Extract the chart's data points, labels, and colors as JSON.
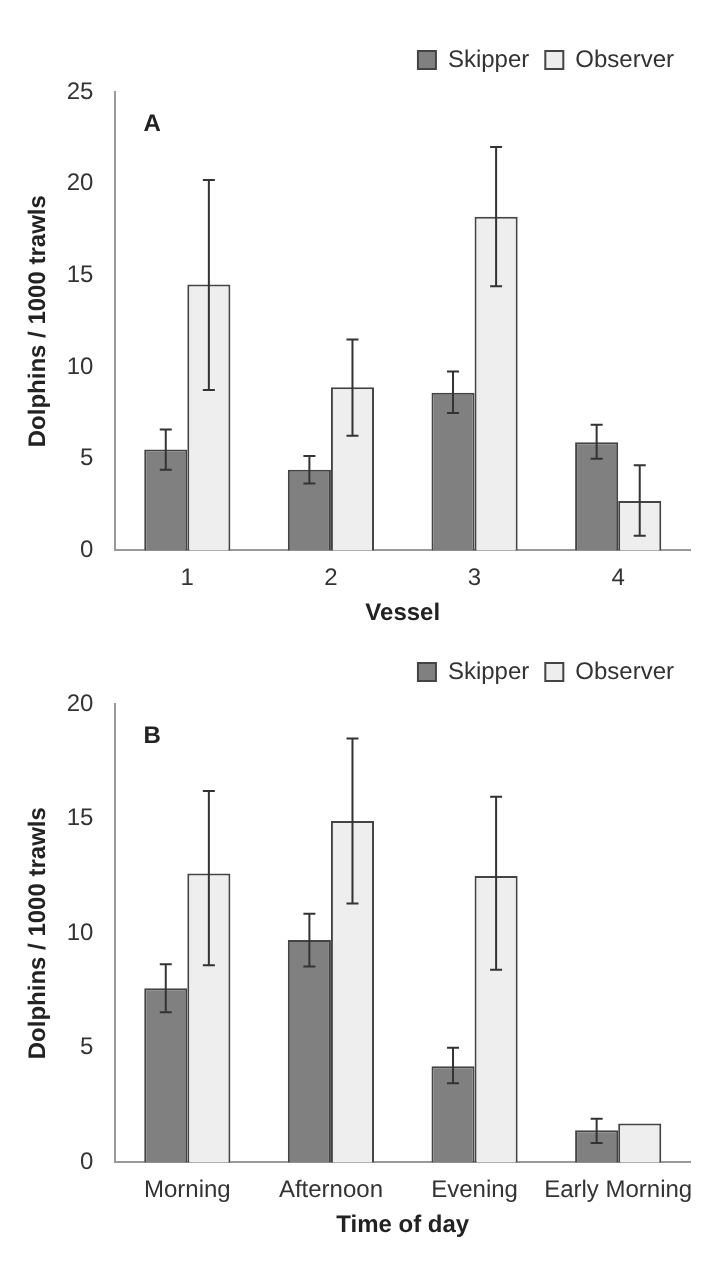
{
  "chart_data": [
    {
      "type": "bar",
      "annotations": [
        "A"
      ],
      "xlabel": "Vessel",
      "ylabel": "Dolphins / 1000 trawls",
      "categories": [
        "1",
        "2",
        "3",
        "4"
      ],
      "series": [
        {
          "name": "Skipper",
          "color": "#808080",
          "values": [
            5.5,
            4.4,
            8.6,
            5.9
          ],
          "errors": [
            [
              4.4,
              6.6
            ],
            [
              3.65,
              5.15
            ],
            [
              7.5,
              9.75
            ],
            [
              5.0,
              6.85
            ]
          ]
        },
        {
          "name": "Observer",
          "color": "#eeeeee",
          "values": [
            14.5,
            8.9,
            18.2,
            2.7
          ],
          "errors": [
            [
              8.75,
              20.2
            ],
            [
              6.25,
              11.5
            ],
            [
              14.4,
              22.0
            ],
            [
              0.8,
              4.65
            ]
          ]
        }
      ],
      "ylim": [
        0,
        25
      ],
      "yticks": [
        0,
        5,
        10,
        15,
        20,
        25
      ],
      "grid": false,
      "legend": "top right"
    },
    {
      "type": "bar",
      "annotations": [
        "B"
      ],
      "xlabel": "Time of day",
      "ylabel": "Dolphins / 1000 trawls",
      "categories": [
        "Morning",
        "Afternoon",
        "Evening",
        "Early Morning"
      ],
      "series": [
        {
          "name": "Skipper",
          "color": "#808080",
          "values": [
            7.6,
            9.7,
            4.2,
            1.4
          ],
          "errors": [
            [
              6.55,
              8.65
            ],
            [
              8.55,
              10.85
            ],
            [
              3.45,
              5.0
            ],
            [
              0.85,
              1.9
            ]
          ]
        },
        {
          "name": "Observer",
          "color": "#eeeeee",
          "values": [
            12.6,
            14.9,
            12.5,
            1.7
          ],
          "errors": [
            [
              8.6,
              16.2
            ],
            [
              11.3,
              18.5
            ],
            [
              8.4,
              15.95
            ],
            null
          ]
        }
      ],
      "ylim": [
        0,
        20
      ],
      "yticks": [
        0,
        5,
        10,
        15,
        20
      ],
      "grid": false,
      "legend": "top right"
    }
  ]
}
